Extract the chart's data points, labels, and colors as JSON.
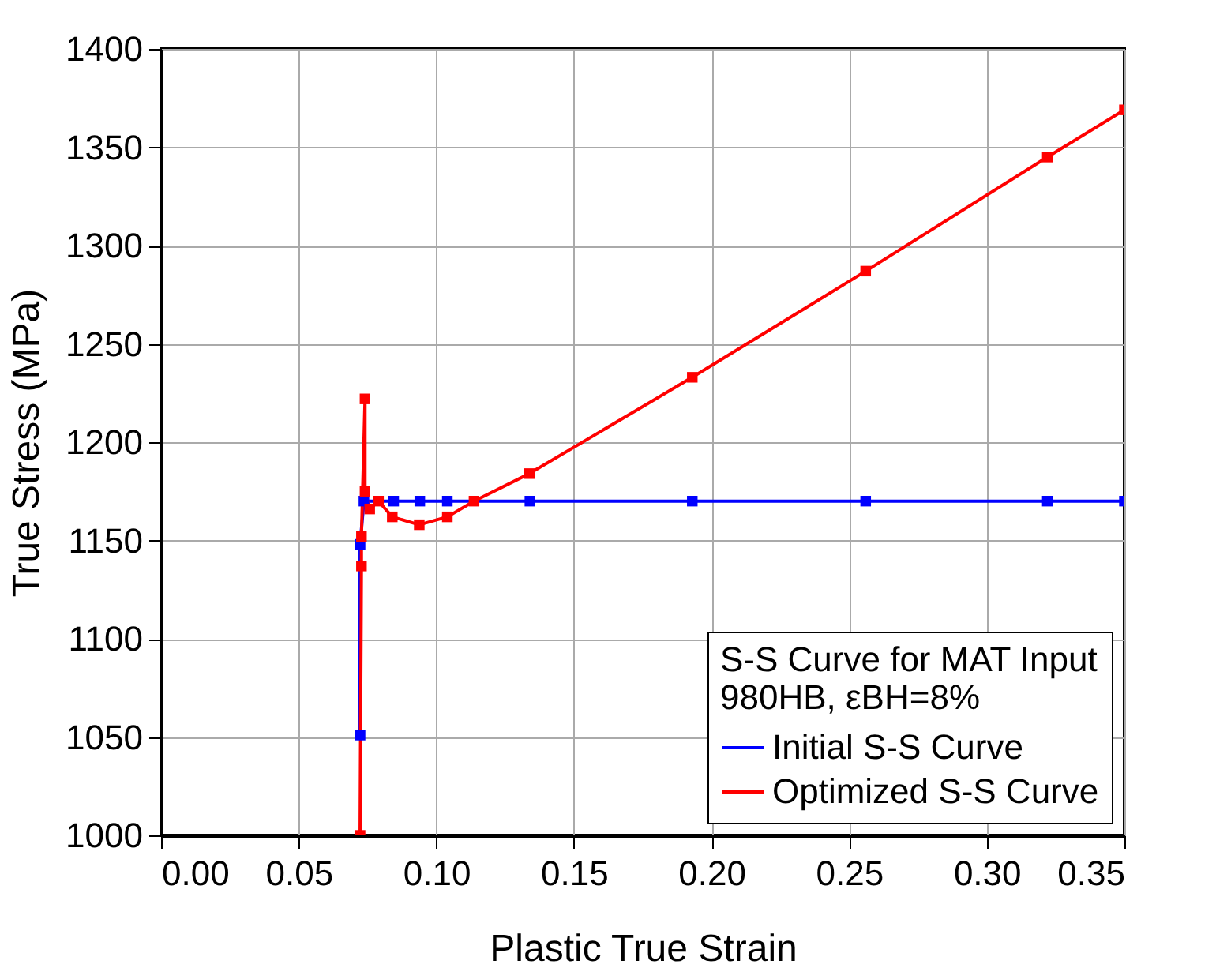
{
  "chart_data": {
    "type": "line",
    "xlabel": "Plastic True Strain",
    "ylabel": "True Stress (MPa)",
    "legend_title": [
      "S-S Curve for MAT Input",
      "980HB, εBH=8%"
    ],
    "xlim": [
      0,
      0.35
    ],
    "xticks": [
      {
        "value": 0,
        "label": "0.00"
      },
      {
        "value": 0.05,
        "label": "0.05"
      },
      {
        "value": 0.1,
        "label": "0.10"
      },
      {
        "value": 0.15,
        "label": "0.15"
      },
      {
        "value": 0.2,
        "label": "0.20"
      },
      {
        "value": 0.25,
        "label": "0.25"
      },
      {
        "value": 0.3,
        "label": "0.30"
      },
      {
        "value": 0.35,
        "label": "0.35"
      }
    ],
    "ylim": [
      1000,
      1400
    ],
    "yticks": [
      1000,
      1050,
      1100,
      1150,
      1200,
      1250,
      1300,
      1350,
      1400
    ],
    "grid": true,
    "legend": "bottom right",
    "marker": "square",
    "line_style": "solid",
    "series": [
      {
        "name": "Initial S-S Curve",
        "color": "#0000ff",
        "x": [
          0.0723,
          0.0723,
          0.0737,
          0.0845,
          0.094,
          0.104,
          0.134,
          0.193,
          0.256,
          0.322,
          0.35
        ],
        "values": [
          1051,
          1148,
          1170,
          1170,
          1170,
          1170,
          1170,
          1170,
          1170,
          1170,
          1170
        ]
      },
      {
        "name": "Optimized S-S Curve",
        "color": "#ff0000",
        "x": [
          0.0723,
          0.0728,
          0.0728,
          0.0741,
          0.0741,
          0.0758,
          0.079,
          0.084,
          0.0938,
          0.104,
          0.1137,
          0.1338,
          0.193,
          0.256,
          0.322,
          0.35
        ],
        "values": [
          1000,
          1137,
          1152,
          1222,
          1175,
          1166,
          1170,
          1162,
          1158,
          1162,
          1170,
          1184,
          1233,
          1287,
          1345,
          1369
        ]
      }
    ]
  }
}
